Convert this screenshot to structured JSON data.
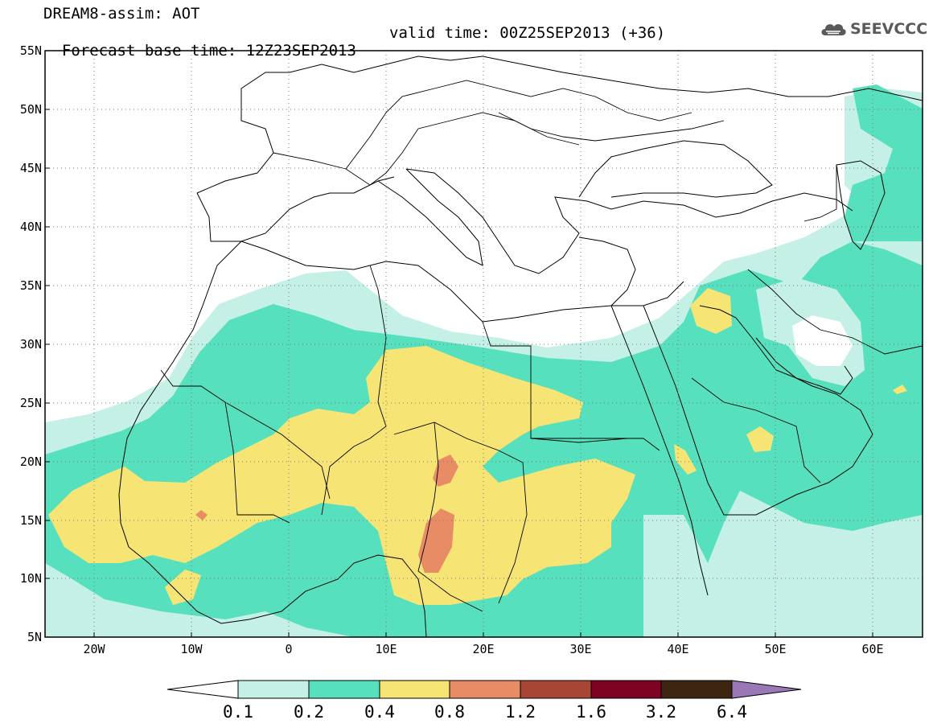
{
  "title": {
    "line1": "DREAM8-assim: AOT",
    "base_time": "Forecast base time: 12Z23SEP2013",
    "valid_time": "valid time: 00Z25SEP2013 (+36)"
  },
  "logo": {
    "text": "SEEVCCC",
    "icon": "cloud-icon"
  },
  "map": {
    "lon_range": [
      -25,
      65
    ],
    "lat_range": [
      5,
      55
    ],
    "lat_labels": [
      "55N",
      "50N",
      "45N",
      "40N",
      "35N",
      "30N",
      "25N",
      "20N",
      "15N",
      "10N",
      "5N"
    ],
    "lon_labels": [
      "20W",
      "10W",
      "0",
      "10E",
      "20E",
      "30E",
      "40E",
      "50E",
      "60E"
    ],
    "gridlines": "dotted"
  },
  "colorbar": {
    "levels": [
      "0.1",
      "0.2",
      "0.4",
      "0.8",
      "1.2",
      "1.6",
      "3.2",
      "6.4"
    ],
    "colors": [
      "#ffffff",
      "#c4f0e6",
      "#57e0bd",
      "#f6e574",
      "#e88c66",
      "#a84636",
      "#7e0322",
      "#3e2512",
      "#9a78b8"
    ]
  }
}
